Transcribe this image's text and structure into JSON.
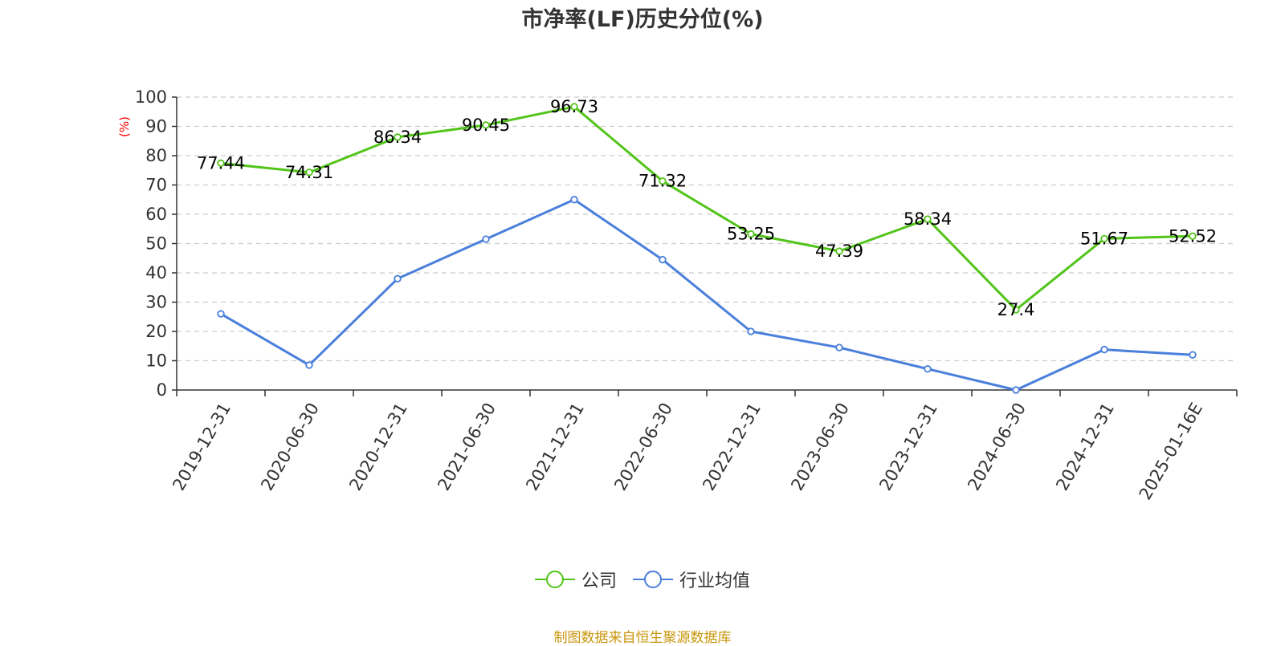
{
  "title": "市净率(LF)历史分位(%)",
  "source": "制图数据来自恒生聚源数据库",
  "colors": {
    "company": "#52c41a",
    "industry": "#4a7fdc",
    "ylabel": "#ff0000"
  },
  "chart_data": {
    "type": "line",
    "title": "市净率(LF)历史分位(%)",
    "ylabel": "(%)",
    "xlabel": "",
    "ylim": [
      0,
      100
    ],
    "yticks": [
      0,
      10,
      20,
      30,
      40,
      50,
      60,
      70,
      80,
      90,
      100
    ],
    "grid": true,
    "legend_position": "bottom-center",
    "categories": [
      "2019-12-31",
      "2020-06-30",
      "2020-12-31",
      "2021-06-30",
      "2021-12-31",
      "2022-06-30",
      "2022-12-31",
      "2023-06-30",
      "2023-12-31",
      "2024-06-30",
      "2024-12-31",
      "2025-01-16E"
    ],
    "series": [
      {
        "name": "公司",
        "values": [
          77.44,
          74.31,
          86.34,
          90.45,
          96.73,
          71.32,
          53.25,
          47.39,
          58.34,
          27.4,
          51.67,
          52.52
        ],
        "labels": [
          "77.44",
          "74.31",
          "86.34",
          "90.45",
          "96.73",
          "71.32",
          "53.25",
          "47.39",
          "58.34",
          "27.4",
          "51.67",
          "52.52"
        ],
        "show_labels": true
      },
      {
        "name": "行业均值",
        "values": [
          26,
          8.5,
          38,
          51.5,
          65,
          44.5,
          20,
          14.5,
          7.2,
          0,
          13.8,
          12
        ],
        "show_labels": false
      }
    ]
  }
}
